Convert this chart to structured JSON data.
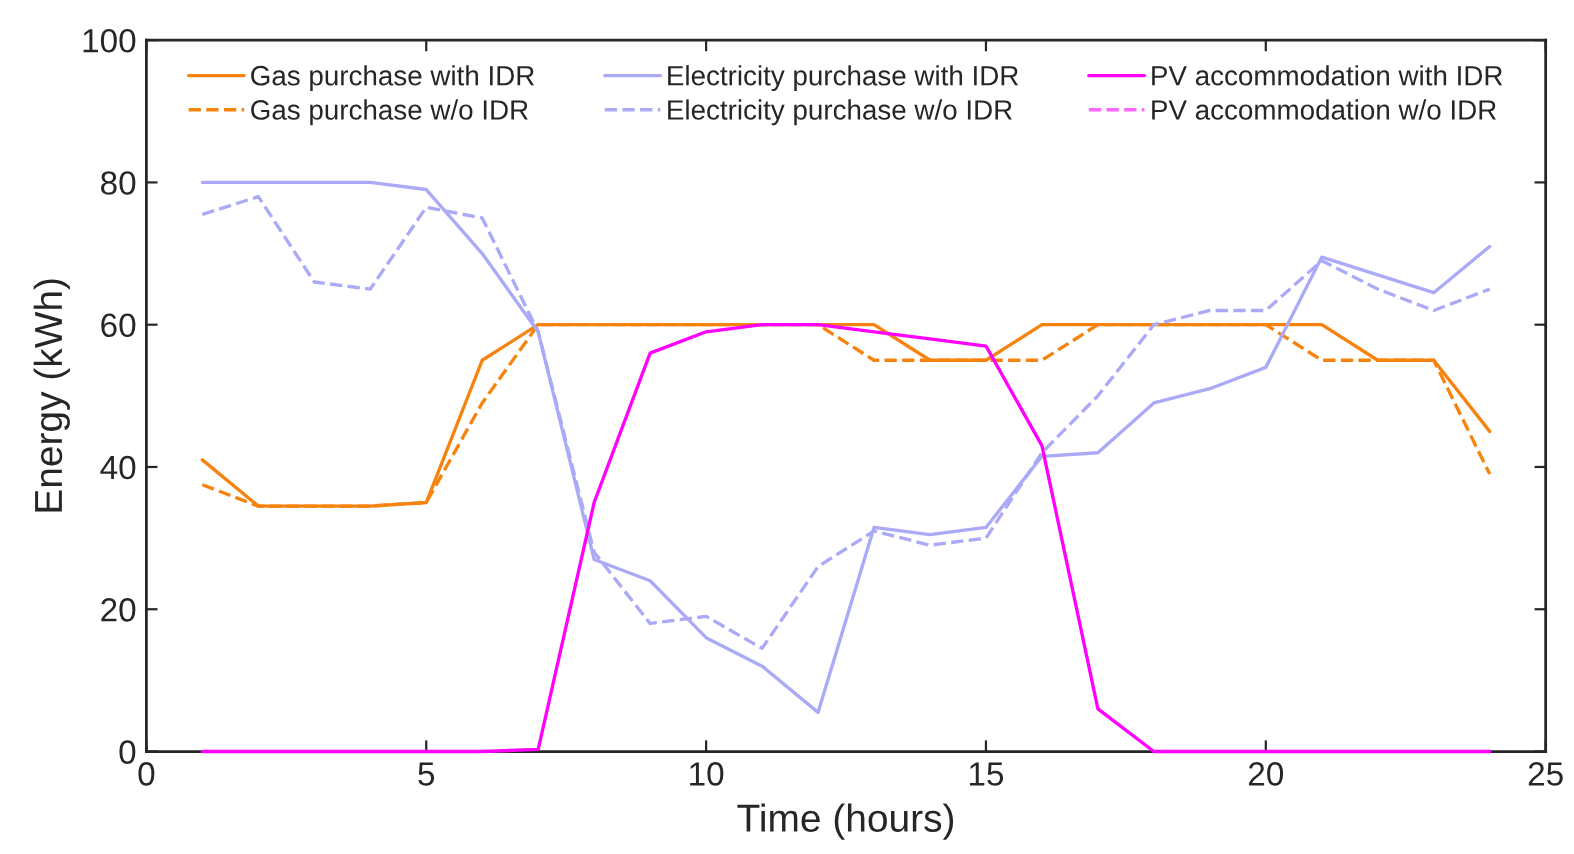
{
  "chart_data": {
    "type": "line",
    "xlabel": "Time (hours)",
    "ylabel": "Energy (kWh)",
    "x": [
      1,
      2,
      3,
      4,
      5,
      6,
      7,
      8,
      9,
      10,
      11,
      12,
      13,
      14,
      15,
      16,
      17,
      18,
      19,
      20,
      21,
      22,
      23,
      24
    ],
    "xlim": [
      0,
      25
    ],
    "xticks": [
      0,
      5,
      10,
      15,
      20,
      25
    ],
    "ylim": [
      0,
      100
    ],
    "yticks": [
      0,
      20,
      40,
      60,
      80,
      100
    ],
    "grid": false,
    "legend": "top",
    "marker": "none",
    "series": [
      {
        "name": "Gas purchase with IDR",
        "color": "#f7830f",
        "line_style": "solid",
        "values": [
          41,
          34.5,
          34.5,
          34.5,
          35,
          55,
          60,
          60,
          60,
          60,
          60,
          60,
          60,
          55,
          55,
          60,
          60,
          60,
          60,
          60,
          60,
          55,
          55,
          45
        ]
      },
      {
        "name": "Gas purchase w/o IDR",
        "color": "#f7830f",
        "line_style": "dashed",
        "values": [
          37.5,
          34.5,
          34.5,
          34.5,
          35,
          49,
          60,
          60,
          60,
          60,
          60,
          60,
          55,
          55,
          55,
          55,
          60,
          60,
          60,
          60,
          55,
          55,
          55,
          39
        ]
      },
      {
        "name": "Electricity purchase with IDR",
        "color": "#aaaaf7",
        "line_style": "solid",
        "values": [
          80,
          80,
          80,
          80,
          79,
          70,
          59,
          27,
          24,
          16,
          12,
          5.5,
          31.5,
          30.5,
          31.5,
          41.5,
          42,
          49,
          51,
          54,
          69.5,
          67,
          64.5,
          71
        ]
      },
      {
        "name": "Electricity purchase w/o IDR",
        "color": "#aaaaf7",
        "line_style": "dashed",
        "values": [
          75.5,
          78,
          66,
          65,
          76.5,
          75,
          59,
          28,
          18,
          19,
          14.5,
          26,
          31,
          29,
          30,
          42,
          50,
          60,
          62,
          62,
          69,
          65,
          62,
          65
        ]
      },
      {
        "name": "PV accommodation with IDR",
        "color": "#ff00ff",
        "line_style": "solid",
        "values": [
          0,
          0,
          0,
          0,
          0,
          0,
          0.3,
          35,
          56,
          59,
          60,
          60,
          59,
          58,
          57,
          43,
          6,
          0,
          0,
          0,
          0,
          0,
          0,
          0
        ]
      },
      {
        "name": "PV accommodation w/o IDR",
        "color": "#ff66ff",
        "line_style": "dashed",
        "values": [
          null,
          null,
          null,
          null,
          null,
          null,
          null,
          null,
          null,
          null,
          null,
          null,
          null,
          null,
          null,
          null,
          null,
          null,
          null,
          null,
          null,
          null,
          null,
          null
        ]
      }
    ]
  }
}
